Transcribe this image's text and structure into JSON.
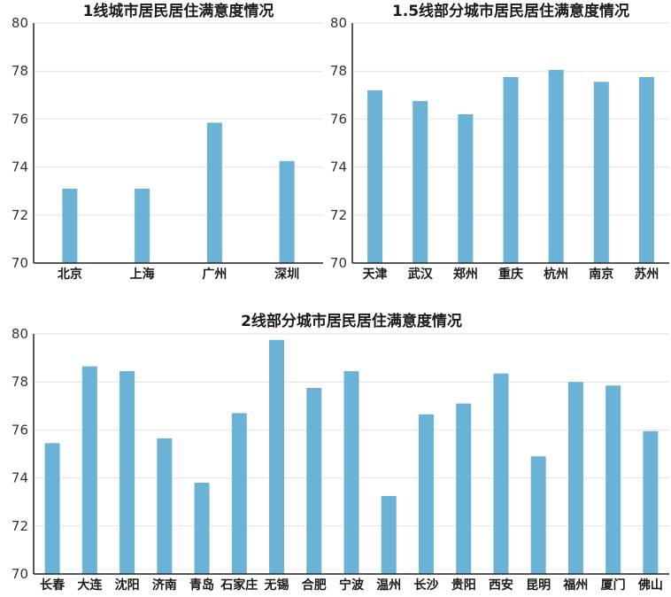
{
  "colors": {
    "bar": "#6ab3d6",
    "axis": "#222222",
    "grid": "#e2e2e2",
    "text": "#1a1a1a"
  },
  "chart_data": [
    {
      "type": "bar",
      "title": "1线城市居民居住满意度情况",
      "categories": [
        "北京",
        "上海",
        "广州",
        "深圳"
      ],
      "values": [
        73.1,
        73.1,
        75.85,
        74.25
      ],
      "ylim": [
        70,
        80
      ],
      "yticks": [
        "70",
        "72",
        "74",
        "76",
        "78",
        "80"
      ],
      "grid": true
    },
    {
      "type": "bar",
      "title": "1.5线部分城市居民居住满意度情况",
      "categories": [
        "天津",
        "武汉",
        "郑州",
        "重庆",
        "杭州",
        "南京",
        "苏州"
      ],
      "values": [
        77.2,
        76.75,
        76.2,
        77.75,
        78.05,
        77.55,
        77.75
      ],
      "ylim": [
        70,
        80
      ],
      "yticks": [
        "70",
        "72",
        "74",
        "76",
        "78",
        "80"
      ],
      "grid": true
    },
    {
      "type": "bar",
      "title": "2线部分城市居民居住满意度情况",
      "categories": [
        "长春",
        "大连",
        "沈阳",
        "济南",
        "青岛",
        "石家庄",
        "无锡",
        "合肥",
        "宁波",
        "温州",
        "长沙",
        "贵阳",
        "西安",
        "昆明",
        "福州",
        "厦门",
        "佛山"
      ],
      "values": [
        75.45,
        78.65,
        78.45,
        75.65,
        73.8,
        76.7,
        79.75,
        77.75,
        78.45,
        73.25,
        76.65,
        77.1,
        78.35,
        74.9,
        78.0,
        77.85,
        75.95
      ],
      "ylim": [
        70,
        80
      ],
      "yticks": [
        "70",
        "72",
        "74",
        "76",
        "78",
        "80"
      ],
      "grid": true
    }
  ]
}
